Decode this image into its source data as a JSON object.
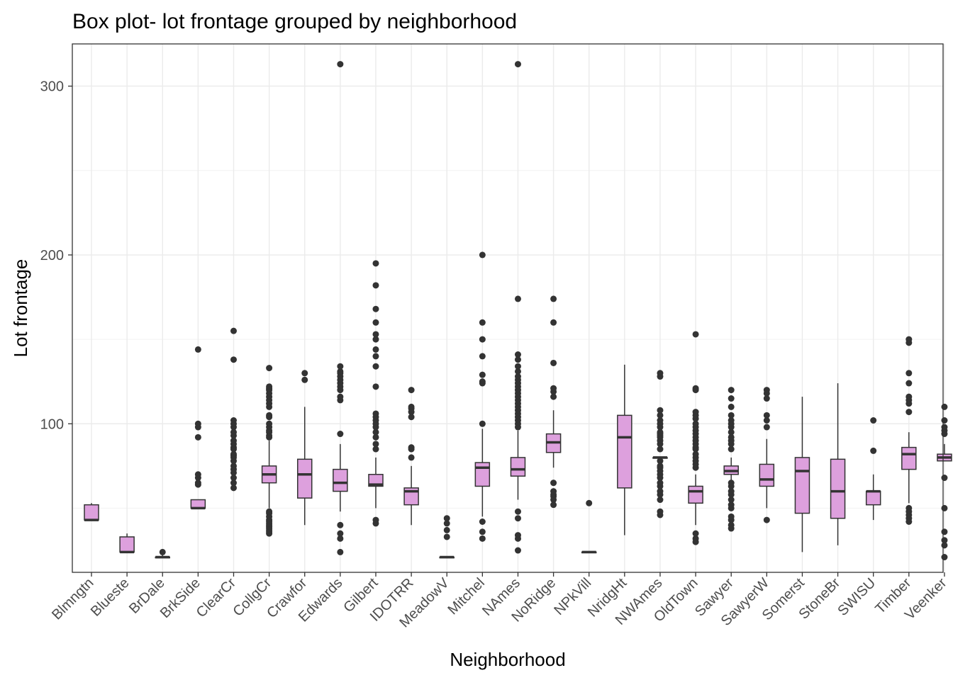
{
  "chart_data": {
    "type": "box",
    "title": "Box plot- lot frontage grouped by neighborhood",
    "xlabel": "Neighborhood",
    "ylabel": "Lot frontage",
    "ylim": [
      12,
      325
    ],
    "yticks": [
      100,
      200,
      300
    ],
    "grid": true,
    "legend": "none",
    "box_fill": "#dda0dd",
    "line_color": "#333333",
    "categories": [
      "Blmngtn",
      "Blueste",
      "BrDale",
      "BrkSide",
      "ClearCr",
      "CollgCr",
      "Crawfor",
      "Edwards",
      "Gilbert",
      "IDOTRR",
      "MeadowV",
      "Mitchel",
      "NAmes",
      "NoRidge",
      "NPkVill",
      "NridgHt",
      "NWAmes",
      "OldTown",
      "Sawyer",
      "SawyerW",
      "Somerst",
      "StoneBr",
      "SWISU",
      "Timber",
      "Veenker"
    ],
    "boxes": [
      {
        "name": "Blmngtn",
        "min": 43,
        "q1": 43,
        "median": 43,
        "q3": 52,
        "max": 53,
        "outliers": []
      },
      {
        "name": "Blueste",
        "min": 24,
        "q1": 24,
        "median": 24,
        "q3": 33,
        "max": 35,
        "outliers": []
      },
      {
        "name": "BrDale",
        "min": 21,
        "q1": 21,
        "median": 21,
        "q3": 21,
        "max": 24,
        "outliers": [
          24
        ]
      },
      {
        "name": "BrkSide",
        "min": 50,
        "q1": 50,
        "median": 50,
        "q3": 55,
        "max": 55,
        "outliers": [
          64,
          65,
          68,
          70,
          92,
          98,
          100,
          144
        ]
      },
      {
        "name": "ClearCr",
        "min": null,
        "q1": null,
        "median": null,
        "q3": null,
        "max": null,
        "outliers": [
          62,
          65,
          68,
          71,
          73,
          75,
          78,
          80,
          81,
          82,
          85,
          86,
          88,
          90,
          93,
          95,
          98,
          100,
          102,
          138,
          155
        ]
      },
      {
        "name": "CollgCr",
        "min": 50,
        "q1": 65,
        "median": 70,
        "q3": 75,
        "max": 90,
        "outliers": [
          35,
          36,
          37,
          38,
          39,
          40,
          41,
          42,
          43,
          45,
          47,
          48,
          92,
          93,
          95,
          96,
          98,
          100,
          104,
          105,
          110,
          112,
          114,
          116,
          118,
          120,
          121,
          122,
          133
        ]
      },
      {
        "name": "Crawfor",
        "min": 40,
        "q1": 56,
        "median": 70,
        "q3": 79,
        "max": 110,
        "outliers": [
          126,
          130
        ]
      },
      {
        "name": "Edwards",
        "min": 48,
        "q1": 60,
        "median": 65,
        "q3": 73,
        "max": 88,
        "outliers": [
          24,
          32,
          35,
          40,
          94,
          114,
          116,
          120,
          122,
          124,
          126,
          128,
          130,
          131,
          134,
          313
        ]
      },
      {
        "name": "Gilbert",
        "min": 50,
        "q1": 63,
        "median": 64,
        "q3": 70,
        "max": 80,
        "outliers": [
          41,
          43,
          85,
          88,
          92,
          95,
          98,
          100,
          102,
          104,
          106,
          122,
          134,
          140,
          144,
          150,
          153,
          160,
          168,
          182,
          195
        ]
      },
      {
        "name": "IDOTRR",
        "min": 40,
        "q1": 52,
        "median": 60,
        "q3": 62,
        "max": 75,
        "outliers": [
          80,
          85,
          86,
          104,
          107,
          109,
          110,
          120
        ]
      },
      {
        "name": "MeadowV",
        "min": 21,
        "q1": 21,
        "median": 21,
        "q3": 21,
        "max": 21,
        "outliers": [
          33,
          37,
          41,
          44
        ]
      },
      {
        "name": "Mitchel",
        "min": 45,
        "q1": 63,
        "median": 74,
        "q3": 77,
        "max": 97,
        "outliers": [
          32,
          36,
          42,
          100,
          124,
          125,
          129,
          140,
          150,
          160,
          200
        ]
      },
      {
        "name": "NAmes",
        "min": 55,
        "q1": 69,
        "median": 73,
        "q3": 80,
        "max": 96,
        "outliers": [
          25,
          32,
          34,
          44,
          48,
          98,
          100,
          102,
          104,
          106,
          108,
          110,
          112,
          114,
          116,
          118,
          120,
          122,
          124,
          126,
          128,
          131,
          134,
          138,
          141,
          174,
          313
        ]
      },
      {
        "name": "NoRidge",
        "min": 74,
        "q1": 83,
        "median": 89,
        "q3": 94,
        "max": 108,
        "outliers": [
          52,
          55,
          57,
          58,
          60,
          65,
          116,
          119,
          121,
          136,
          160,
          174
        ]
      },
      {
        "name": "NPkVill",
        "min": 24,
        "q1": 24,
        "median": 24,
        "q3": 24,
        "max": 24,
        "outliers": [
          53
        ]
      },
      {
        "name": "NridgHt",
        "min": 34,
        "q1": 62,
        "median": 92,
        "q3": 105,
        "max": 135,
        "outliers": []
      },
      {
        "name": "NWAmes",
        "min": 80,
        "q1": 80,
        "median": 80,
        "q3": 80,
        "max": 80,
        "outliers": [
          46,
          48,
          55,
          58,
          60,
          63,
          65,
          68,
          70,
          72,
          74,
          75,
          78,
          85,
          88,
          90,
          92,
          93,
          94,
          95,
          98,
          100,
          102,
          105,
          108,
          128,
          130
        ]
      },
      {
        "name": "OldTown",
        "min": 40,
        "q1": 53,
        "median": 60,
        "q3": 63,
        "max": 70,
        "outliers": [
          30,
          32,
          35,
          74,
          76,
          78,
          80,
          82,
          85,
          86,
          88,
          90,
          92,
          94,
          96,
          98,
          100,
          103,
          105,
          107,
          120,
          121,
          153
        ]
      },
      {
        "name": "Sawyer",
        "min": 60,
        "q1": 70,
        "median": 72,
        "q3": 75,
        "max": 80,
        "outliers": [
          38,
          40,
          43,
          45,
          50,
          52,
          55,
          58,
          60,
          63,
          65,
          85,
          88,
          90,
          92,
          95,
          98,
          100,
          102,
          105,
          110,
          115,
          120
        ]
      },
      {
        "name": "SawyerW",
        "min": 50,
        "q1": 63,
        "median": 67,
        "q3": 76,
        "max": 91,
        "outliers": [
          43,
          98,
          102,
          105,
          115,
          118,
          120
        ]
      },
      {
        "name": "Somerst",
        "min": 24,
        "q1": 47,
        "median": 72,
        "q3": 80,
        "max": 116,
        "outliers": []
      },
      {
        "name": "StoneBr",
        "min": 28,
        "q1": 44,
        "median": 60,
        "q3": 79,
        "max": 124,
        "outliers": []
      },
      {
        "name": "SWISU",
        "min": 43,
        "q1": 52,
        "median": 60,
        "q3": 60,
        "max": 70,
        "outliers": [
          84,
          102
        ]
      },
      {
        "name": "Timber",
        "min": 53,
        "q1": 73,
        "median": 82,
        "q3": 86,
        "max": 95,
        "outliers": [
          42,
          44,
          46,
          48,
          50,
          107,
          112,
          114,
          116,
          124,
          130,
          148,
          150
        ]
      },
      {
        "name": "Veenker",
        "min": 78,
        "q1": 78,
        "median": 80,
        "q3": 82,
        "max": 88,
        "outliers": [
          21,
          28,
          31,
          36,
          50,
          68,
          94,
          96,
          98,
          102,
          110
        ]
      }
    ]
  }
}
